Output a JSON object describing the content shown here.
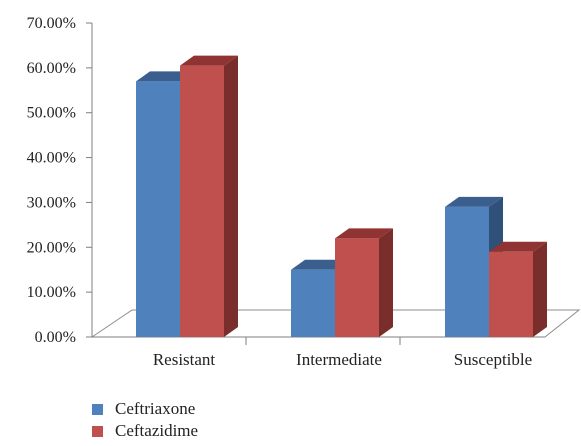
{
  "chart_data": {
    "type": "bar",
    "categories": [
      "Resistant",
      "Intermediate",
      "Susceptible"
    ],
    "series": [
      {
        "name": "Ceftriaxone",
        "values": [
          57.0,
          15.0,
          29.0
        ],
        "color": "#4f81bd",
        "top_color": "#3a5f8f",
        "side_color": "#2f5078"
      },
      {
        "name": "Ceftazidime",
        "values": [
          60.5,
          22.0,
          19.0
        ],
        "color": "#c0504d",
        "top_color": "#8f3432",
        "side_color": "#7a2e2c"
      }
    ],
    "yticks": [
      "0.00%",
      "10.00%",
      "20.00%",
      "30.00%",
      "40.00%",
      "50.00%",
      "60.00%",
      "70.00%"
    ],
    "ylim": [
      0,
      70
    ],
    "grid": false,
    "legend": "bottom-left",
    "title": "",
    "xlabel": "",
    "ylabel": ""
  }
}
